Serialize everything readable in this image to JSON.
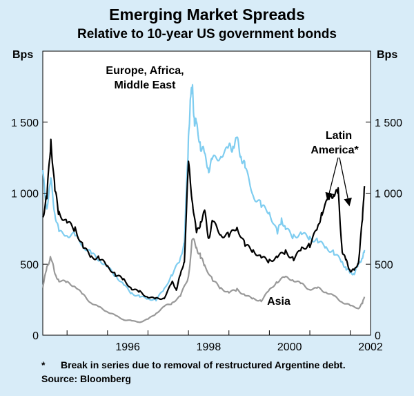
{
  "title": "Emerging Market Spreads",
  "subtitle": "Relative to 10-year US government bonds",
  "footnote_marker": "*",
  "footnote_text": "Break in series due to removal of restructured Argentine debt.",
  "source": "Source: Bloomberg",
  "colors": {
    "background": "#d8ecf8",
    "plot_background": "#ffffff",
    "latin_america": "#000000",
    "europe_africa_middle_east": "#7fcdf0",
    "asia": "#999999",
    "axis": "#000000"
  },
  "chart_data": {
    "type": "line",
    "title": "Emerging Market Spreads",
    "subtitle": "Relative to 10-year US government bonds",
    "ylabel_left": "Bps",
    "ylabel_right": "Bps",
    "xlim": [
      1994.4,
      2002.5
    ],
    "ylim": [
      0,
      2000
    ],
    "x_ticks": [
      1996,
      1998,
      2000,
      2002
    ],
    "x_tick_labels": [
      "1996",
      "1998",
      "2000",
      "2002"
    ],
    "y_ticks": [
      0,
      500,
      1000,
      1500
    ],
    "y_tick_labels": [
      "0",
      "500",
      "1 000",
      "1 500"
    ],
    "grid": false,
    "annotations": {
      "europe": [
        "Europe, Africa,",
        "Middle East"
      ],
      "latin": [
        "Latin",
        "America*"
      ],
      "asia": "Asia"
    },
    "series": [
      {
        "name": "Latin America*",
        "color": "#000000",
        "x": [
          1994.4,
          1994.5,
          1994.6,
          1994.7,
          1994.8,
          1995.0,
          1995.2,
          1995.4,
          1995.6,
          1995.8,
          1996.0,
          1996.2,
          1996.4,
          1996.6,
          1996.8,
          1997.0,
          1997.2,
          1997.4,
          1997.6,
          1997.7,
          1997.8,
          1997.9,
          1998.0,
          1998.1,
          1998.2,
          1998.3,
          1998.4,
          1998.5,
          1998.6,
          1998.8,
          1999.0,
          1999.2,
          1999.4,
          1999.6,
          1999.8,
          2000.0,
          2000.2,
          2000.4,
          2000.6,
          2000.8,
          2001.0,
          2001.2,
          2001.3,
          2001.5,
          2001.6,
          2001.7,
          2001.8,
          2001.9,
          2002.0,
          2002.1,
          2002.2,
          2002.3,
          2002.35
        ],
        "values": [
          830,
          950,
          1340,
          1000,
          850,
          800,
          760,
          640,
          560,
          550,
          480,
          420,
          380,
          320,
          300,
          270,
          260,
          270,
          380,
          330,
          420,
          520,
          1180,
          920,
          700,
          800,
          880,
          700,
          820,
          720,
          700,
          750,
          620,
          580,
          540,
          520,
          560,
          600,
          550,
          620,
          640,
          750,
          850,
          950,
          980,
          1000,
          600,
          530,
          470,
          460,
          520,
          800,
          1050
        ]
      },
      {
        "name": "Europe, Africa, Middle East",
        "color": "#7fcdf0",
        "x": [
          1994.4,
          1994.5,
          1994.6,
          1994.7,
          1994.8,
          1995.0,
          1995.2,
          1995.4,
          1995.6,
          1995.8,
          1996.0,
          1996.2,
          1996.4,
          1996.6,
          1996.8,
          1997.0,
          1997.2,
          1997.4,
          1997.6,
          1997.8,
          1997.9,
          1998.0,
          1998.05,
          1998.1,
          1998.15,
          1998.2,
          1998.3,
          1998.4,
          1998.5,
          1998.6,
          1998.8,
          1999.0,
          1999.1,
          1999.2,
          1999.3,
          1999.4,
          1999.6,
          1999.8,
          2000.0,
          2000.2,
          2000.3,
          2000.4,
          2000.6,
          2000.8,
          2001.0,
          2001.2,
          2001.4,
          2001.6,
          2001.8,
          2001.9,
          2002.0,
          2002.1,
          2002.2,
          2002.3,
          2002.35
        ],
        "values": [
          1120,
          900,
          1100,
          880,
          740,
          720,
          700,
          620,
          560,
          520,
          470,
          420,
          360,
          300,
          280,
          260,
          250,
          320,
          420,
          520,
          650,
          1350,
          1720,
          1750,
          1550,
          1500,
          1350,
          1250,
          1150,
          1200,
          1250,
          1300,
          1350,
          1400,
          1300,
          1200,
          1000,
          900,
          850,
          700,
          800,
          740,
          700,
          730,
          700,
          680,
          620,
          580,
          500,
          460,
          430,
          430,
          500,
          560,
          600
        ]
      },
      {
        "name": "Asia",
        "color": "#999999",
        "x": [
          1994.4,
          1994.5,
          1994.6,
          1994.7,
          1994.8,
          1995.0,
          1995.2,
          1995.4,
          1995.6,
          1995.8,
          1996.0,
          1996.2,
          1996.4,
          1996.6,
          1996.8,
          1997.0,
          1997.2,
          1997.4,
          1997.6,
          1997.8,
          1998.0,
          1998.1,
          1998.2,
          1998.3,
          1998.4,
          1998.6,
          1998.8,
          1999.0,
          1999.2,
          1999.4,
          1999.6,
          1999.8,
          2000.0,
          2000.2,
          2000.4,
          2000.6,
          2000.8,
          2001.0,
          2001.2,
          2001.4,
          2001.6,
          2001.8,
          2002.0,
          2002.2,
          2002.3,
          2002.35
        ],
        "values": [
          350,
          480,
          560,
          420,
          380,
          360,
          340,
          280,
          230,
          200,
          170,
          140,
          110,
          100,
          90,
          110,
          150,
          200,
          230,
          280,
          420,
          700,
          620,
          550,
          480,
          380,
          320,
          300,
          320,
          290,
          260,
          250,
          320,
          380,
          400,
          380,
          350,
          320,
          330,
          310,
          280,
          240,
          210,
          190,
          220,
          270
        ]
      }
    ]
  }
}
